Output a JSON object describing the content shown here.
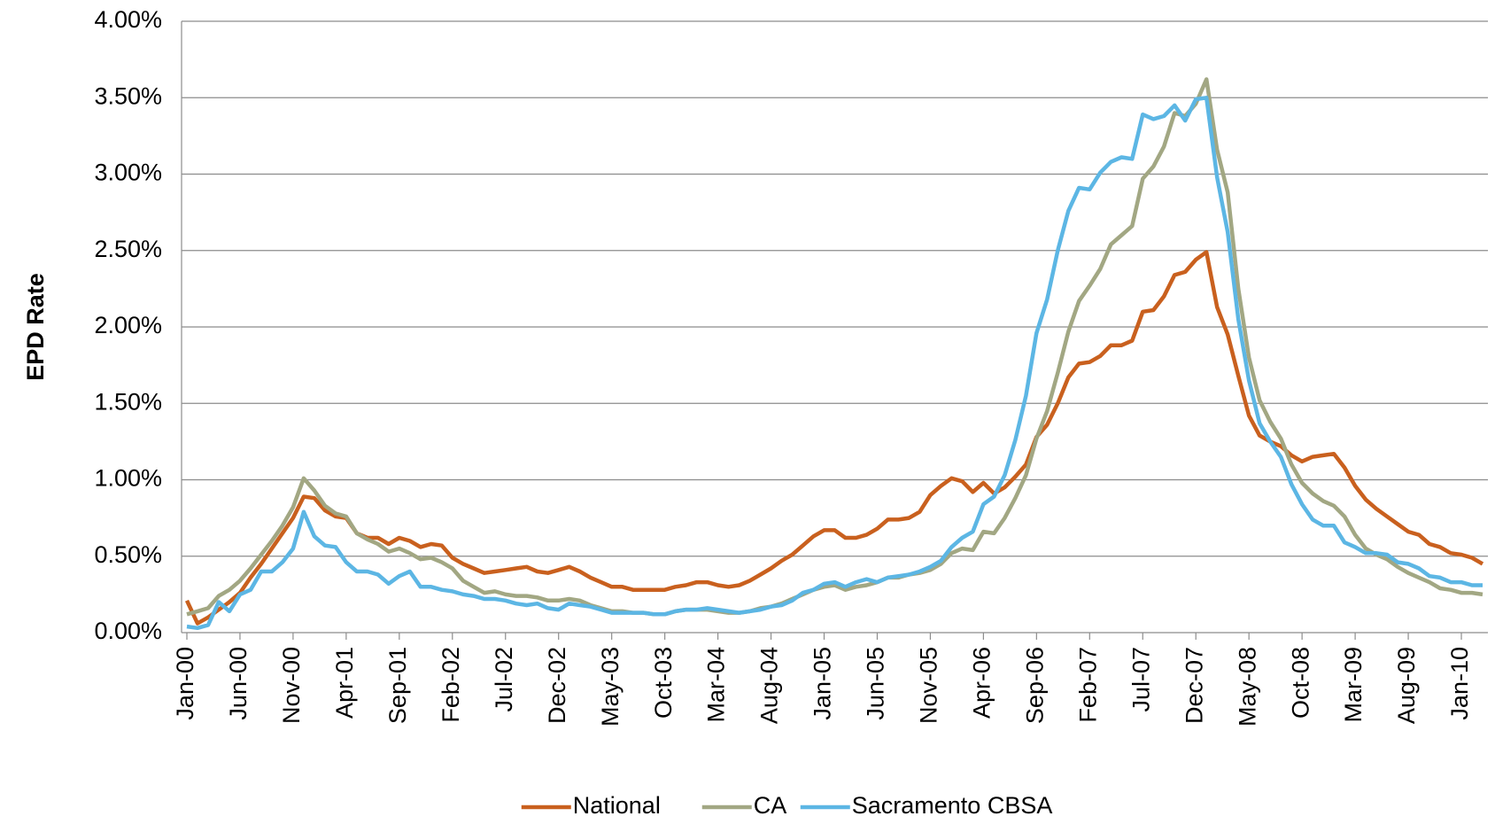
{
  "chart_data": {
    "type": "line",
    "y_label": "EPD Rate",
    "categories": [
      "Jan-00",
      null,
      null,
      null,
      null,
      "Jun-00",
      null,
      null,
      null,
      null,
      "Nov-00",
      null,
      null,
      null,
      null,
      "Apr-01",
      null,
      null,
      null,
      null,
      "Sep-01",
      null,
      null,
      null,
      null,
      "Feb-02",
      null,
      null,
      null,
      null,
      "Jul-02",
      null,
      null,
      null,
      null,
      "Dec-02",
      null,
      null,
      null,
      null,
      "May-03",
      null,
      null,
      null,
      null,
      "Oct-03",
      null,
      null,
      null,
      null,
      "Mar-04",
      null,
      null,
      null,
      null,
      "Aug-04",
      null,
      null,
      null,
      null,
      "Jan-05",
      null,
      null,
      null,
      null,
      "Jun-05",
      null,
      null,
      null,
      null,
      "Nov-05",
      null,
      null,
      null,
      null,
      "Apr-06",
      null,
      null,
      null,
      null,
      "Sep-06",
      null,
      null,
      null,
      null,
      "Feb-07",
      null,
      null,
      null,
      null,
      "Jul-07",
      null,
      null,
      null,
      null,
      "Dec-07",
      null,
      null,
      null,
      null,
      "May-08",
      null,
      null,
      null,
      null,
      "Oct-08",
      null,
      null,
      null,
      null,
      "Mar-09",
      null,
      null,
      null,
      null,
      "Aug-09",
      null,
      null,
      null,
      null,
      "Jan-10",
      null,
      null
    ],
    "series": [
      {
        "name": "National",
        "color": "#c9601e",
        "values": [
          0.21,
          0.06,
          0.1,
          0.15,
          0.2,
          0.26,
          0.36,
          0.45,
          0.55,
          0.65,
          0.75,
          0.89,
          0.88,
          0.8,
          0.76,
          0.75,
          0.65,
          0.62,
          0.62,
          0.58,
          0.62,
          0.6,
          0.56,
          0.58,
          0.57,
          0.49,
          0.45,
          0.42,
          0.39,
          0.4,
          0.41,
          0.42,
          0.43,
          0.4,
          0.39,
          0.41,
          0.43,
          0.4,
          0.36,
          0.33,
          0.3,
          0.3,
          0.28,
          0.28,
          0.28,
          0.28,
          0.3,
          0.31,
          0.33,
          0.33,
          0.31,
          0.3,
          0.31,
          0.34,
          0.38,
          0.42,
          0.47,
          0.51,
          0.57,
          0.63,
          0.67,
          0.67,
          0.62,
          0.62,
          0.64,
          0.68,
          0.74,
          0.74,
          0.75,
          0.79,
          0.9,
          0.96,
          1.01,
          0.99,
          0.92,
          0.98,
          0.91,
          0.95,
          1.02,
          1.1,
          1.28,
          1.36,
          1.5,
          1.67,
          1.76,
          1.77,
          1.81,
          1.88,
          1.88,
          1.91,
          2.1,
          2.11,
          2.2,
          2.34,
          2.36,
          2.44,
          2.49,
          2.13,
          1.95,
          1.68,
          1.42,
          1.29,
          1.25,
          1.22,
          1.16,
          1.12,
          1.15,
          1.16,
          1.17,
          1.08,
          0.96,
          0.87,
          0.81,
          0.76,
          0.71,
          0.66,
          0.64,
          0.58,
          0.56,
          0.52,
          0.51,
          0.49,
          0.45
        ]
      },
      {
        "name": "CA",
        "color": "#a2a783",
        "values": [
          0.12,
          0.14,
          0.16,
          0.24,
          0.28,
          0.34,
          0.42,
          0.51,
          0.6,
          0.7,
          0.82,
          1.01,
          0.93,
          0.83,
          0.78,
          0.76,
          0.65,
          0.61,
          0.58,
          0.53,
          0.55,
          0.52,
          0.48,
          0.49,
          0.46,
          0.42,
          0.34,
          0.3,
          0.26,
          0.27,
          0.25,
          0.24,
          0.24,
          0.23,
          0.21,
          0.21,
          0.22,
          0.21,
          0.18,
          0.16,
          0.14,
          0.14,
          0.13,
          0.13,
          0.12,
          0.12,
          0.14,
          0.15,
          0.15,
          0.15,
          0.14,
          0.13,
          0.13,
          0.14,
          0.16,
          0.17,
          0.19,
          0.22,
          0.25,
          0.28,
          0.3,
          0.31,
          0.28,
          0.3,
          0.31,
          0.33,
          0.36,
          0.36,
          0.38,
          0.39,
          0.41,
          0.45,
          0.52,
          0.55,
          0.54,
          0.66,
          0.65,
          0.75,
          0.88,
          1.03,
          1.27,
          1.45,
          1.7,
          1.97,
          2.17,
          2.27,
          2.38,
          2.54,
          2.6,
          2.66,
          2.97,
          3.05,
          3.18,
          3.4,
          3.38,
          3.46,
          3.62,
          3.16,
          2.88,
          2.25,
          1.8,
          1.52,
          1.38,
          1.27,
          1.1,
          0.98,
          0.91,
          0.86,
          0.83,
          0.76,
          0.64,
          0.55,
          0.51,
          0.48,
          0.43,
          0.39,
          0.36,
          0.33,
          0.29,
          0.28,
          0.26,
          0.26,
          0.25
        ]
      },
      {
        "name": "Sacramento CBSA",
        "color": "#5cb6e4",
        "values": [
          0.04,
          0.03,
          0.05,
          0.2,
          0.14,
          0.25,
          0.28,
          0.4,
          0.4,
          0.46,
          0.55,
          0.79,
          0.63,
          0.57,
          0.56,
          0.46,
          0.4,
          0.4,
          0.38,
          0.32,
          0.37,
          0.4,
          0.3,
          0.3,
          0.28,
          0.27,
          0.25,
          0.24,
          0.22,
          0.22,
          0.21,
          0.19,
          0.18,
          0.19,
          0.16,
          0.15,
          0.19,
          0.18,
          0.17,
          0.15,
          0.13,
          0.13,
          0.13,
          0.13,
          0.12,
          0.12,
          0.14,
          0.15,
          0.15,
          0.16,
          0.15,
          0.14,
          0.13,
          0.14,
          0.15,
          0.17,
          0.18,
          0.21,
          0.26,
          0.28,
          0.32,
          0.33,
          0.3,
          0.33,
          0.35,
          0.33,
          0.36,
          0.37,
          0.38,
          0.4,
          0.43,
          0.47,
          0.56,
          0.62,
          0.66,
          0.84,
          0.89,
          1.03,
          1.26,
          1.55,
          1.96,
          2.18,
          2.5,
          2.76,
          2.91,
          2.9,
          3.01,
          3.08,
          3.11,
          3.1,
          3.39,
          3.36,
          3.38,
          3.45,
          3.35,
          3.49,
          3.5,
          2.98,
          2.62,
          2.05,
          1.65,
          1.37,
          1.25,
          1.15,
          0.97,
          0.84,
          0.74,
          0.7,
          0.7,
          0.59,
          0.56,
          0.52,
          0.52,
          0.51,
          0.46,
          0.45,
          0.42,
          0.37,
          0.36,
          0.33,
          0.33,
          0.31,
          0.31
        ]
      }
    ],
    "ylim": [
      0,
      4
    ],
    "yticks": [
      {
        "value": 0,
        "label": "0.00%"
      },
      {
        "value": 0.5,
        "label": "0.50%"
      },
      {
        "value": 1,
        "label": "1.00%"
      },
      {
        "value": 1.5,
        "label": "1.50%"
      },
      {
        "value": 2,
        "label": "2.00%"
      },
      {
        "value": 2.5,
        "label": "2.50%"
      },
      {
        "value": 3,
        "label": "3.00%"
      },
      {
        "value": 3.5,
        "label": "3.50%"
      },
      {
        "value": 4,
        "label": "4.00%"
      }
    ],
    "grid": true,
    "legend": "bottom"
  }
}
